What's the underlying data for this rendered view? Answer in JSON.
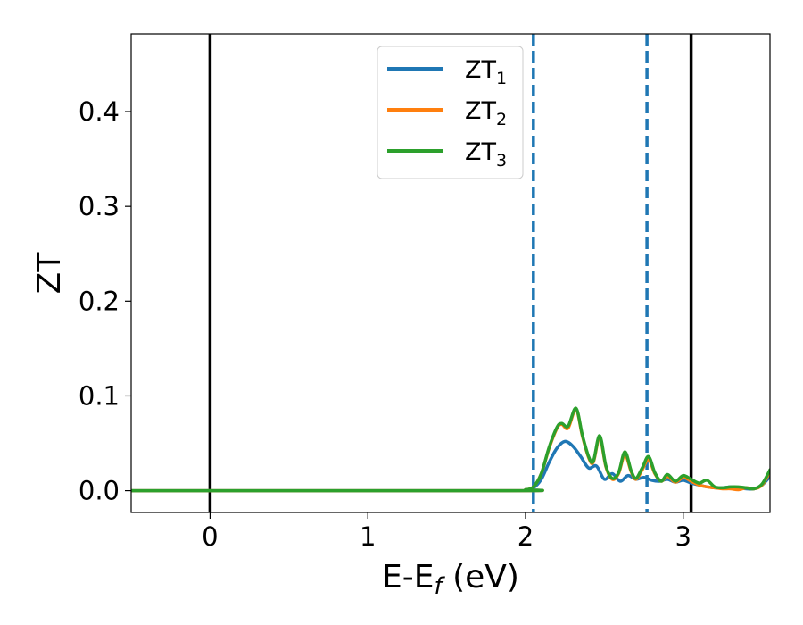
{
  "chart_data": {
    "type": "line",
    "xlabel": "E-E",
    "xlabel_sub": "f",
    "xlabel_unit": " (eV)",
    "ylabel": "ZT",
    "xlim": [
      -0.5,
      3.55
    ],
    "ylim": [
      -0.023,
      0.482
    ],
    "xticks": [
      0,
      1,
      2,
      3
    ],
    "xtick_labels": [
      "0",
      "1",
      "2",
      "3"
    ],
    "yticks": [
      0.0,
      0.1,
      0.2,
      0.3,
      0.4
    ],
    "ytick_labels": [
      "0.0",
      "0.1",
      "0.2",
      "0.3",
      "0.4"
    ],
    "grid": false,
    "legend_position": "top-center",
    "vlines_solid": [
      0.0,
      3.05
    ],
    "vlines_dashed": [
      2.05,
      2.77
    ],
    "solid_line_color": "#000000",
    "dashed_line_color": "#1f77b4",
    "series": [
      {
        "name": "ZT",
        "sub": "1",
        "color": "#1f77b4",
        "x": [
          -0.5,
          1.9,
          2.0,
          2.05,
          2.1,
          2.15,
          2.2,
          2.25,
          2.3,
          2.35,
          2.4,
          2.45,
          2.5,
          2.55,
          2.6,
          2.65,
          2.7,
          2.75,
          2.8,
          2.85,
          2.9,
          2.95,
          3.0,
          3.05,
          3.1,
          3.15,
          3.2,
          3.25,
          3.3,
          3.35,
          3.4,
          3.45,
          3.5,
          3.55
        ],
        "y": [
          0,
          0,
          0.001,
          0.003,
          0.012,
          0.03,
          0.045,
          0.052,
          0.047,
          0.036,
          0.024,
          0.026,
          0.012,
          0.018,
          0.01,
          0.016,
          0.012,
          0.014,
          0.011,
          0.01,
          0.012,
          0.009,
          0.011,
          0.008,
          0.006,
          0.004,
          0.003,
          0.003,
          0.004,
          0.003,
          0.002,
          0.002,
          0.006,
          0.015
        ]
      },
      {
        "name": "ZT",
        "sub": "2",
        "color": "#ff7f0e",
        "x": [
          -0.5,
          1.9,
          2.0,
          2.05,
          2.1,
          2.15,
          2.2,
          2.23,
          2.27,
          2.32,
          2.36,
          2.4,
          2.43,
          2.47,
          2.51,
          2.55,
          2.59,
          2.63,
          2.67,
          2.7,
          2.74,
          2.78,
          2.82,
          2.86,
          2.9,
          2.95,
          3.0,
          3.05,
          3.1,
          3.15,
          3.2,
          3.25,
          3.3,
          3.35,
          3.4,
          3.45,
          3.5,
          3.55
        ],
        "y": [
          0,
          0,
          0.001,
          0.004,
          0.018,
          0.045,
          0.066,
          0.07,
          0.066,
          0.086,
          0.058,
          0.035,
          0.03,
          0.056,
          0.025,
          0.012,
          0.018,
          0.038,
          0.02,
          0.012,
          0.022,
          0.033,
          0.018,
          0.01,
          0.015,
          0.009,
          0.014,
          0.01,
          0.006,
          0.004,
          0.003,
          0.002,
          0.002,
          0.001,
          0.003,
          0.002,
          0.006,
          0.02
        ]
      },
      {
        "name": "ZT",
        "sub": "3",
        "color": "#2ca02c",
        "x": [
          -0.5,
          1.9,
          2.0,
          2.05,
          2.1,
          2.15,
          2.2,
          2.23,
          2.27,
          2.32,
          2.36,
          2.4,
          2.43,
          2.47,
          2.51,
          2.55,
          2.59,
          2.63,
          2.67,
          2.7,
          2.74,
          2.78,
          2.82,
          2.86,
          2.9,
          2.95,
          3.0,
          3.05,
          3.1,
          3.15,
          3.2,
          3.25,
          3.3,
          3.35,
          3.4,
          3.45,
          3.5,
          3.55
        ],
        "y": [
          0,
          0,
          0.001,
          0.004,
          0.018,
          0.046,
          0.067,
          0.071,
          0.068,
          0.087,
          0.059,
          0.036,
          0.031,
          0.058,
          0.026,
          0.013,
          0.019,
          0.041,
          0.021,
          0.013,
          0.024,
          0.036,
          0.019,
          0.01,
          0.017,
          0.01,
          0.016,
          0.012,
          0.008,
          0.011,
          0.004,
          0.003,
          0.004,
          0.004,
          0.003,
          0.002,
          0.007,
          0.022
        ]
      }
    ]
  }
}
